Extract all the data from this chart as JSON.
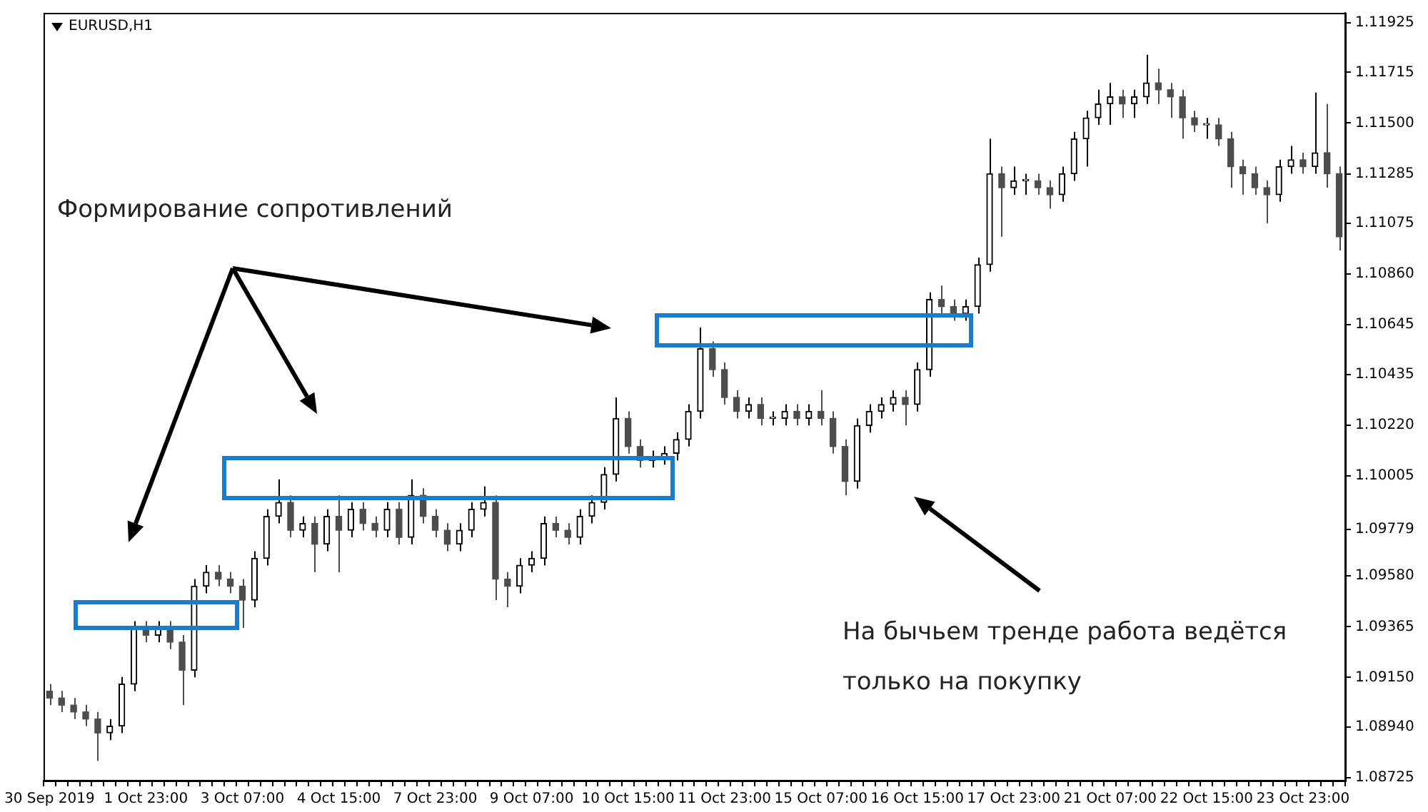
{
  "chart_data": {
    "type": "candlestick",
    "title": "EURUSD,H1",
    "annotations": [
      "Формирование сопротивлений",
      "На бычьем тренде работа ведётся только на покупку"
    ],
    "categories": [
      "30 Sep 2019",
      null,
      null,
      null,
      null,
      null,
      null,
      null,
      "1 Oct 23:00",
      null,
      null,
      null,
      null,
      null,
      null,
      null,
      "3 Oct 07:00",
      null,
      null,
      null,
      null,
      null,
      null,
      null,
      "4 Oct 15:00",
      null,
      null,
      null,
      null,
      null,
      null,
      null,
      "7 Oct 23:00",
      null,
      null,
      null,
      null,
      null,
      null,
      null,
      "9 Oct 07:00",
      null,
      null,
      null,
      null,
      null,
      null,
      null,
      "10 Oct 15:00",
      null,
      null,
      null,
      null,
      null,
      null,
      null,
      "11 Oct 23:00",
      null,
      null,
      null,
      null,
      null,
      null,
      null,
      "15 Oct 07:00",
      null,
      null,
      null,
      null,
      null,
      null,
      null,
      "16 Oct 15:00",
      null,
      null,
      null,
      null,
      null,
      null,
      null,
      "17 Oct 23:00",
      null,
      null,
      null,
      null,
      null,
      null,
      null,
      "21 Oct 07:00",
      null,
      null,
      null,
      null,
      null,
      null,
      null,
      "22 Oct 15:00",
      null,
      null,
      null,
      null,
      null,
      null,
      null,
      "23 Oct 23:00",
      null,
      null,
      null
    ],
    "colors": [
      "#4d4d4d",
      "#4d4d4d",
      "#4d4d4d",
      "#4d4d4d",
      "#4d4d4d",
      "#000000",
      "#000000",
      "#000000",
      "#4d4d4d",
      "#000000",
      "#4d4d4d",
      "#4d4d4d",
      "#000000",
      "#000000",
      "#4d4d4d",
      "#4d4d4d",
      "#4d4d4d",
      "#000000",
      "#000000",
      "#000000",
      "#4d4d4d",
      "#000000",
      "#4d4d4d",
      "#000000",
      "#4d4d4d",
      "#000000",
      "#4d4d4d",
      "#4d4d4d",
      "#000000",
      "#4d4d4d",
      "#000000",
      "#4d4d4d",
      "#4d4d4d",
      "#4d4d4d",
      "#000000",
      "#000000",
      "#000000",
      "#4d4d4d",
      "#4d4d4d",
      "#000000",
      "#000000",
      "#000000",
      "#4d4d4d",
      "#4d4d4d",
      "#000000",
      "#000000",
      "#000000",
      "#000000",
      "#4d4d4d",
      "#4d4d4d",
      "#000000",
      "#000000",
      "#000000",
      "#000000",
      "#000000",
      "#4d4d4d",
      "#4d4d4d",
      "#4d4d4d",
      "#000000",
      "#4d4d4d",
      "#000000",
      "#000000",
      "#4d4d4d",
      "#000000",
      "#4d4d4d",
      "#4d4d4d",
      "#4d4d4d",
      "#000000",
      "#000000",
      "#000000",
      "#000000",
      "#4d4d4d",
      "#000000",
      "#000000",
      "#4d4d4d",
      "#4d4d4d",
      "#000000",
      "#000000",
      "#000000",
      "#4d4d4d",
      "#000000",
      "#000000",
      "#4d4d4d",
      "#4d4d4d",
      "#000000",
      "#000000",
      "#000000",
      "#000000",
      "#000000",
      "#4d4d4d",
      "#000000",
      "#000000",
      "#4d4d4d",
      "#4d4d4d",
      "#4d4d4d",
      "#4d4d4d",
      "#000000",
      "#4d4d4d",
      "#4d4d4d",
      "#4d4d4d",
      "#4d4d4d",
      "#4d4d4d",
      "#000000",
      "#000000",
      "#4d4d4d",
      "#000000",
      "#4d4d4d",
      "#4d4d4d"
    ],
    "ohlc": [
      [
        1.09092,
        1.09122,
        1.09033,
        1.09063
      ],
      [
        1.09063,
        1.09093,
        1.09003,
        1.09033
      ],
      [
        1.09033,
        1.09063,
        1.08974,
        1.09004
      ],
      [
        1.09004,
        1.09034,
        1.08944,
        1.08974
      ],
      [
        1.08974,
        1.09004,
        1.08796,
        1.08915
      ],
      [
        1.08915,
        1.08974,
        1.08885,
        1.08944
      ],
      [
        1.08944,
        1.09152,
        1.08914,
        1.09122
      ],
      [
        1.09122,
        1.09389,
        1.09092,
        1.09359
      ],
      [
        1.09359,
        1.09389,
        1.09299,
        1.09329
      ],
      [
        1.09329,
        1.09389,
        1.09299,
        1.09359
      ],
      [
        1.09359,
        1.09389,
        1.0927,
        1.093
      ],
      [
        1.093,
        1.0933,
        1.09033,
        1.09181
      ],
      [
        1.09181,
        1.09567,
        1.09151,
        1.09537
      ],
      [
        1.09537,
        1.09626,
        1.09507,
        1.09596
      ],
      [
        1.09596,
        1.09626,
        1.09537,
        1.09567
      ],
      [
        1.09567,
        1.09597,
        1.09507,
        1.09537
      ],
      [
        1.09537,
        1.09567,
        1.0936,
        1.09478
      ],
      [
        1.09478,
        1.09685,
        1.09448,
        1.09655
      ],
      [
        1.09655,
        1.09863,
        1.09625,
        1.09833
      ],
      [
        1.09833,
        1.0999,
        1.09803,
        1.09892
      ],
      [
        1.09892,
        1.09922,
        1.09744,
        1.09774
      ],
      [
        1.09774,
        1.09833,
        1.09744,
        1.09803
      ],
      [
        1.09803,
        1.09833,
        1.09596,
        1.09715
      ],
      [
        1.09715,
        1.09863,
        1.09685,
        1.09833
      ],
      [
        1.09833,
        1.09922,
        1.09596,
        1.09774
      ],
      [
        1.09774,
        1.09893,
        1.09744,
        1.09863
      ],
      [
        1.09863,
        1.09893,
        1.09773,
        1.09803
      ],
      [
        1.09803,
        1.09833,
        1.09744,
        1.09774
      ],
      [
        1.09774,
        1.09893,
        1.09744,
        1.09863
      ],
      [
        1.09863,
        1.09893,
        1.09714,
        1.09744
      ],
      [
        1.09744,
        1.0999,
        1.09714,
        1.09922
      ],
      [
        1.09922,
        1.09952,
        1.09803,
        1.09833
      ],
      [
        1.09833,
        1.09863,
        1.09744,
        1.09774
      ],
      [
        1.09774,
        1.09804,
        1.09685,
        1.09715
      ],
      [
        1.09715,
        1.09804,
        1.09685,
        1.09774
      ],
      [
        1.09774,
        1.09893,
        1.09744,
        1.09863
      ],
      [
        1.09863,
        1.0996,
        1.09833,
        1.09892
      ],
      [
        1.09892,
        1.09922,
        1.09478,
        1.09567
      ],
      [
        1.09567,
        1.09597,
        1.09448,
        1.09537
      ],
      [
        1.09537,
        1.09656,
        1.09507,
        1.09626
      ],
      [
        1.09626,
        1.09685,
        1.09596,
        1.09655
      ],
      [
        1.09655,
        1.09833,
        1.09625,
        1.09803
      ],
      [
        1.09803,
        1.09833,
        1.09744,
        1.09774
      ],
      [
        1.09774,
        1.09804,
        1.09714,
        1.09744
      ],
      [
        1.09744,
        1.09863,
        1.09714,
        1.09833
      ],
      [
        1.09833,
        1.09922,
        1.09803,
        1.09892
      ],
      [
        1.09892,
        1.10041,
        1.09862,
        1.10011
      ],
      [
        1.10011,
        1.10337,
        1.09981,
        1.10248
      ],
      [
        1.10248,
        1.10278,
        1.10099,
        1.10129
      ],
      [
        1.10129,
        1.10159,
        1.1004,
        1.1007
      ],
      [
        1.1007,
        1.10112,
        1.1004,
        1.10082
      ],
      [
        1.10082,
        1.1013,
        1.10052,
        1.101
      ],
      [
        1.101,
        1.10189,
        1.1007,
        1.10159
      ],
      [
        1.10159,
        1.10308,
        1.10129,
        1.10278
      ],
      [
        1.10278,
        1.10633,
        1.10248,
        1.10544
      ],
      [
        1.10544,
        1.10574,
        1.10425,
        1.10455
      ],
      [
        1.10455,
        1.10485,
        1.10307,
        1.10337
      ],
      [
        1.10337,
        1.10367,
        1.10248,
        1.10278
      ],
      [
        1.10278,
        1.10337,
        1.10248,
        1.10307
      ],
      [
        1.10307,
        1.10337,
        1.10218,
        1.10248
      ],
      [
        1.10248,
        1.10278,
        1.10218,
        1.10248
      ],
      [
        1.10248,
        1.10308,
        1.10218,
        1.10278
      ],
      [
        1.10278,
        1.10308,
        1.10218,
        1.10248
      ],
      [
        1.10248,
        1.10308,
        1.10218,
        1.10278
      ],
      [
        1.10278,
        1.10367,
        1.10218,
        1.10248
      ],
      [
        1.10248,
        1.10278,
        1.10099,
        1.10129
      ],
      [
        1.10129,
        1.10159,
        1.09922,
        1.09981
      ],
      [
        1.09981,
        1.10248,
        1.09951,
        1.10218
      ],
      [
        1.10218,
        1.10308,
        1.10188,
        1.10278
      ],
      [
        1.10278,
        1.10337,
        1.10248,
        1.10307
      ],
      [
        1.10307,
        1.10367,
        1.10277,
        1.10337
      ],
      [
        1.10337,
        1.10367,
        1.10218,
        1.10307
      ],
      [
        1.10307,
        1.10485,
        1.10277,
        1.10455
      ],
      [
        1.10455,
        1.10782,
        1.10425,
        1.10752
      ],
      [
        1.10752,
        1.10811,
        1.10692,
        1.10722
      ],
      [
        1.10722,
        1.10752,
        1.10662,
        1.10692
      ],
      [
        1.10692,
        1.10752,
        1.10662,
        1.10722
      ],
      [
        1.10722,
        1.1093,
        1.10692,
        1.109
      ],
      [
        1.109,
        1.11433,
        1.1087,
        1.11285
      ],
      [
        1.11285,
        1.11315,
        1.11018,
        1.11226
      ],
      [
        1.11226,
        1.11315,
        1.11196,
        1.11255
      ],
      [
        1.11255,
        1.11285,
        1.11196,
        1.11255
      ],
      [
        1.11255,
        1.11285,
        1.11196,
        1.11226
      ],
      [
        1.11226,
        1.11256,
        1.11137,
        1.11196
      ],
      [
        1.11196,
        1.11315,
        1.11166,
        1.11285
      ],
      [
        1.11285,
        1.11463,
        1.11255,
        1.11433
      ],
      [
        1.11433,
        1.11552,
        1.11315,
        1.11522
      ],
      [
        1.11522,
        1.11641,
        1.11492,
        1.11581
      ],
      [
        1.11581,
        1.1167,
        1.11492,
        1.11611
      ],
      [
        1.11611,
        1.11641,
        1.11522,
        1.11581
      ],
      [
        1.11581,
        1.11641,
        1.11522,
        1.11611
      ],
      [
        1.11611,
        1.11789,
        1.11581,
        1.1167
      ],
      [
        1.1167,
        1.1173,
        1.11581,
        1.11641
      ],
      [
        1.11641,
        1.1167,
        1.11522,
        1.11611
      ],
      [
        1.11611,
        1.11641,
        1.11433,
        1.11522
      ],
      [
        1.11522,
        1.11552,
        1.11462,
        1.11492
      ],
      [
        1.11492,
        1.11522,
        1.11433,
        1.11492
      ],
      [
        1.11492,
        1.11522,
        1.11403,
        1.11433
      ],
      [
        1.11433,
        1.11463,
        1.11226,
        1.11315
      ],
      [
        1.11315,
        1.11345,
        1.11196,
        1.11285
      ],
      [
        1.11285,
        1.11315,
        1.11196,
        1.11226
      ],
      [
        1.11226,
        1.11256,
        1.11075,
        1.11196
      ],
      [
        1.11196,
        1.11345,
        1.11166,
        1.11315
      ],
      [
        1.11315,
        1.11403,
        1.11285,
        1.11344
      ],
      [
        1.11344,
        1.11374,
        1.11285,
        1.11315
      ],
      [
        1.11315,
        1.11629,
        1.11285,
        1.11374
      ],
      [
        1.11374,
        1.11581,
        1.11226,
        1.11285
      ],
      [
        1.11285,
        1.11315,
        1.1096,
        1.11018
      ]
    ],
    "ylim": [
      1.08713,
      1.11967
    ],
    "yticks": [
      1.11925,
      1.11715,
      {
        "value": 1.115,
        "label": "1.11500"
      },
      1.11285,
      1.11075,
      {
        "value": 1.1086,
        "label": "1.10860"
      },
      1.10645,
      1.10435,
      {
        "value": 1.1022,
        "label": "1.10220"
      },
      1.10005,
      1.09779,
      {
        "value": 1.0958,
        "label": "1.09580"
      },
      1.09365,
      {
        "value": 1.0915,
        "label": "1.09150"
      },
      {
        "value": 1.0894,
        "label": "1.08940"
      },
      1.08725
    ],
    "grid": false,
    "legend": false
  }
}
